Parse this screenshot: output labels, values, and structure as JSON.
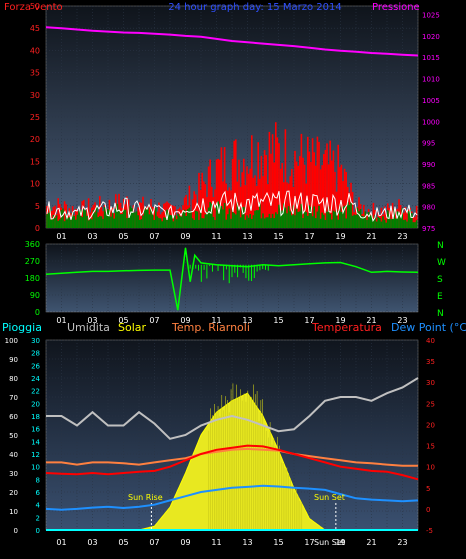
{
  "top_panel": {
    "left_title": "Forza vento",
    "center_title": "24 hour graph day: 15 Marzo 2014",
    "right_title": "Pressione",
    "left_ticks": [
      "50",
      "45",
      "40",
      "35",
      "30",
      "25",
      "20",
      "15",
      "10",
      "5",
      "0"
    ],
    "right_ticks": [
      "1025",
      "1020",
      "1015",
      "1010",
      "1005",
      "1000",
      "995",
      "990",
      "985",
      "980",
      "975"
    ],
    "hour_ticks": [
      "01",
      "03",
      "05",
      "07",
      "09",
      "11",
      "13",
      "15",
      "17",
      "19",
      "21",
      "23"
    ]
  },
  "mid_panel": {
    "left_ticks": [
      "360",
      "270",
      "180",
      "90",
      "0"
    ],
    "right_labels": [
      "N",
      "W",
      "S",
      "E",
      "N"
    ],
    "hour_ticks": [
      "01",
      "03",
      "05",
      "07",
      "09",
      "11",
      "13",
      "15",
      "17",
      "19",
      "21",
      "23"
    ]
  },
  "bottom_panel": {
    "labels": {
      "pioggia": "Pioggia",
      "umidita": "Umidita",
      "solar": "Solar",
      "temp_riarnoli": "Temp. Riarnoli",
      "temperatura": "Temperatura",
      "dew_point": "Dew Point (°C)"
    },
    "humidity_ticks": [
      "100",
      "90",
      "80",
      "70",
      "60",
      "50",
      "40",
      "30",
      "20",
      "10",
      "0"
    ],
    "rain_ticks": [
      "30",
      "28",
      "26",
      "24",
      "22",
      "20",
      "18",
      "16",
      "14",
      "12",
      "10",
      "8",
      "6",
      "4",
      "2",
      "0"
    ],
    "temp_ticks": [
      "40",
      "35",
      "30",
      "25",
      "20",
      "15",
      "10",
      "5",
      "0",
      "-5"
    ],
    "hour_ticks": [
      "01",
      "03",
      "05",
      "07",
      "09",
      "11",
      "13",
      "15",
      "17",
      "19",
      "21",
      "23"
    ],
    "sun_rise_label": "Sun Rise",
    "sun_set_label": "Sun Set",
    "sun_set_label_bottom": "Sun Set"
  },
  "colors": {
    "panel_bg_top": "#4a5e7a",
    "panel_bg_bottom": "#10151d",
    "pressure": "#ff00ff",
    "wind": "#ff0000",
    "gust": "#ffffff",
    "wind_avg": "#008000",
    "direction": "#00ff00",
    "humidity": "#c0c0c0",
    "solar": "#ffff00",
    "temperature": "#ff0000",
    "temp_riarnoli": "#ff8040",
    "dew_point": "#1e90ff",
    "rain": "#00ffff"
  },
  "chart_data": [
    {
      "type": "line",
      "title": "24 hour graph day: 15 Marzo 2014",
      "x_unit": "hour",
      "xlim": [
        0,
        24
      ],
      "series": [
        {
          "name": "Forza vento",
          "axis": "left",
          "ylim": [
            0,
            50
          ],
          "x": [
            0,
            1,
            2,
            3,
            4,
            5,
            6,
            7,
            8,
            9,
            10,
            11,
            12,
            13,
            14,
            15,
            16,
            17,
            18,
            19,
            20,
            21,
            22,
            23,
            24
          ],
          "values": [
            5,
            5,
            4,
            5,
            5,
            6,
            5,
            5,
            4,
            6,
            9,
            13,
            15,
            16,
            18,
            17,
            16,
            15,
            14,
            13,
            5,
            4,
            4,
            5,
            4
          ]
        },
        {
          "name": "Pressione",
          "axis": "right",
          "ylim": [
            975,
            1027
          ],
          "x": [
            0,
            1,
            2,
            3,
            4,
            5,
            6,
            7,
            8,
            9,
            10,
            11,
            12,
            13,
            14,
            15,
            16,
            17,
            18,
            19,
            20,
            21,
            22,
            23,
            24
          ],
          "values": [
            1022,
            1021.8,
            1021.5,
            1021.2,
            1021,
            1020.8,
            1020.7,
            1020.5,
            1020.3,
            1020,
            1019.8,
            1019.3,
            1018.8,
            1018.5,
            1018.2,
            1017.9,
            1017.6,
            1017.2,
            1016.8,
            1016.5,
            1016.3,
            1016,
            1015.8,
            1015.6,
            1015.4
          ]
        }
      ]
    },
    {
      "type": "line",
      "x_unit": "hour",
      "xlim": [
        0,
        24
      ],
      "series": [
        {
          "name": "Direzione",
          "ylim": [
            0,
            360
          ],
          "x": [
            0,
            1,
            2,
            3,
            4,
            5,
            6,
            7,
            8,
            8.5,
            9,
            9.3,
            9.6,
            10,
            11,
            12,
            13,
            14,
            15,
            16,
            17,
            18,
            19,
            20,
            21,
            22,
            23,
            24
          ],
          "values": [
            200,
            205,
            210,
            215,
            215,
            218,
            220,
            222,
            222,
            10,
            340,
            160,
            300,
            260,
            250,
            245,
            240,
            250,
            245,
            250,
            255,
            260,
            262,
            240,
            210,
            215,
            212,
            210
          ]
        }
      ]
    },
    {
      "type": "line",
      "x_unit": "hour",
      "xlim": [
        0,
        24
      ],
      "series": [
        {
          "name": "Umidita",
          "axis": "humidity",
          "ylim": [
            0,
            100
          ],
          "x": [
            0,
            1,
            2,
            3,
            4,
            5,
            6,
            7,
            8,
            9,
            10,
            11,
            12,
            13,
            14,
            15,
            16,
            17,
            18,
            19,
            20,
            21,
            22,
            23,
            24
          ],
          "values": [
            60,
            60,
            55,
            62,
            55,
            55,
            62,
            56,
            48,
            50,
            55,
            58,
            60,
            58,
            55,
            52,
            53,
            60,
            68,
            70,
            70,
            68,
            72,
            75,
            80
          ]
        },
        {
          "name": "Solar",
          "axis": "humidity",
          "ylim": [
            0,
            100
          ],
          "x": [
            0,
            6,
            7,
            8,
            9,
            10,
            11,
            12,
            13,
            14,
            15,
            16,
            17,
            18,
            24
          ],
          "values": [
            0,
            0,
            2,
            12,
            30,
            50,
            62,
            68,
            72,
            60,
            42,
            22,
            6,
            0,
            0
          ]
        },
        {
          "name": "Temperatura",
          "axis": "temp",
          "ylim": [
            -5,
            40
          ],
          "x": [
            0,
            1,
            2,
            3,
            4,
            5,
            6,
            7,
            8,
            9,
            10,
            11,
            12,
            13,
            14,
            15,
            16,
            17,
            18,
            19,
            20,
            21,
            22,
            23,
            24
          ],
          "values": [
            8.5,
            8.3,
            8.2,
            8.5,
            8.2,
            8.5,
            8.8,
            9,
            10,
            11.5,
            13,
            14,
            14.5,
            15,
            14.8,
            14,
            13,
            12,
            11,
            10,
            9.5,
            9,
            8.8,
            8,
            7
          ]
        },
        {
          "name": "Temp. Riarnoli",
          "axis": "temp",
          "ylim": [
            -5,
            40
          ],
          "x": [
            0,
            1,
            2,
            3,
            4,
            5,
            6,
            7,
            8,
            9,
            10,
            11,
            12,
            13,
            14,
            15,
            16,
            17,
            18,
            19,
            20,
            21,
            22,
            23,
            24
          ],
          "values": [
            11,
            11,
            10.5,
            11,
            11,
            10.8,
            10.5,
            11,
            11.5,
            12,
            13,
            13.5,
            14,
            14.2,
            14,
            13.8,
            13,
            12.5,
            12,
            11.5,
            11,
            10.8,
            10.5,
            10.2,
            10.2
          ]
        },
        {
          "name": "Dew Point (°C)",
          "axis": "temp",
          "ylim": [
            -5,
            40
          ],
          "x": [
            0,
            1,
            2,
            3,
            4,
            5,
            6,
            7,
            8,
            9,
            10,
            11,
            12,
            13,
            14,
            15,
            16,
            17,
            18,
            19,
            20,
            21,
            22,
            23,
            24
          ],
          "values": [
            0,
            -0.2,
            0,
            0.3,
            0.5,
            0.2,
            0.5,
            1,
            2,
            3,
            4,
            4.5,
            5,
            5.2,
            5.5,
            5.3,
            5,
            4.8,
            4.5,
            3.5,
            2.5,
            2.2,
            2,
            1.8,
            2
          ]
        },
        {
          "name": "Pioggia",
          "axis": "rain",
          "ylim": [
            0,
            30
          ],
          "x": [
            0,
            24
          ],
          "values": [
            0,
            0
          ]
        }
      ],
      "events": {
        "sun_rise_hour": 6.8,
        "sun_set_hour": 18.7
      }
    }
  ]
}
